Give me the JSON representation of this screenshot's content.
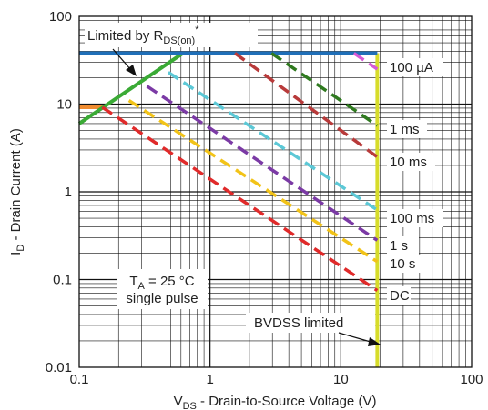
{
  "chart_data": {
    "type": "line",
    "title": "",
    "x_scale": "log",
    "y_scale": "log",
    "xlim": [
      0.1,
      100
    ],
    "ylim": [
      0.01,
      100
    ],
    "grid": true,
    "x_tick_labels": [
      "0.1",
      "1",
      "10",
      "100"
    ],
    "y_tick_labels": [
      "0.01",
      "0.1",
      "1",
      "10",
      "100"
    ],
    "xlabel": {
      "prefix": "V",
      "sub": "DS",
      "rest": " - Drain-to-Source Voltage (V)"
    },
    "ylabel": {
      "prefix": "I",
      "sub": "D",
      "rest": " - Drain Current (A)"
    },
    "limits": {
      "rdson": {
        "color": "#3aaa35",
        "x": [
          0.1,
          0.62
        ],
        "y": [
          6,
          38
        ]
      },
      "current": {
        "color": "#1f6fb8",
        "x": [
          0.1,
          19
        ],
        "y": [
          38,
          38
        ]
      },
      "bvdss": {
        "color": "#d7dc2a",
        "x": [
          19,
          19
        ],
        "y": [
          0.01,
          38
        ]
      },
      "orange": {
        "color": "#f08c30",
        "x": [
          0.1,
          0.15
        ],
        "y": [
          9.2,
          9.2
        ]
      }
    },
    "series": [
      {
        "name": "100 µA",
        "color": "#d65ad6",
        "dashed": true,
        "x": [
          12.6,
          19
        ],
        "y": [
          38,
          25
        ]
      },
      {
        "name": "1 ms",
        "color": "#2f7a1f",
        "dashed": true,
        "x": [
          2.95,
          19
        ],
        "y": [
          38,
          5.7
        ]
      },
      {
        "name": "10 ms",
        "color": "#b83a3a",
        "dashed": true,
        "x": [
          1.55,
          19
        ],
        "y": [
          38,
          2.5
        ]
      },
      {
        "name": "100 ms",
        "color": "#5cc8d6",
        "dashed": true,
        "x": [
          0.48,
          19
        ],
        "y": [
          23,
          0.62
        ]
      },
      {
        "name": "1 s",
        "color": "#7b3aa5",
        "dashed": true,
        "x": [
          0.33,
          19
        ],
        "y": [
          16,
          0.28
        ]
      },
      {
        "name": "10 s",
        "color": "#f2c318",
        "dashed": true,
        "x": [
          0.24,
          19
        ],
        "y": [
          11,
          0.16
        ]
      },
      {
        "name": "DC",
        "color": "#e02a2a",
        "dashed": true,
        "x": [
          0.15,
          19
        ],
        "y": [
          9.2,
          0.075
        ]
      }
    ],
    "annotations": {
      "rdson_label": {
        "prefix": "Limited by R",
        "sub": "DS(on)",
        "sup": "*"
      },
      "ta_line": {
        "prefix": "T",
        "sub": "A",
        "rest": " = 25 °C"
      },
      "pulse_line": "single pulse",
      "bvdss_label": "BVDSS limited"
    }
  }
}
